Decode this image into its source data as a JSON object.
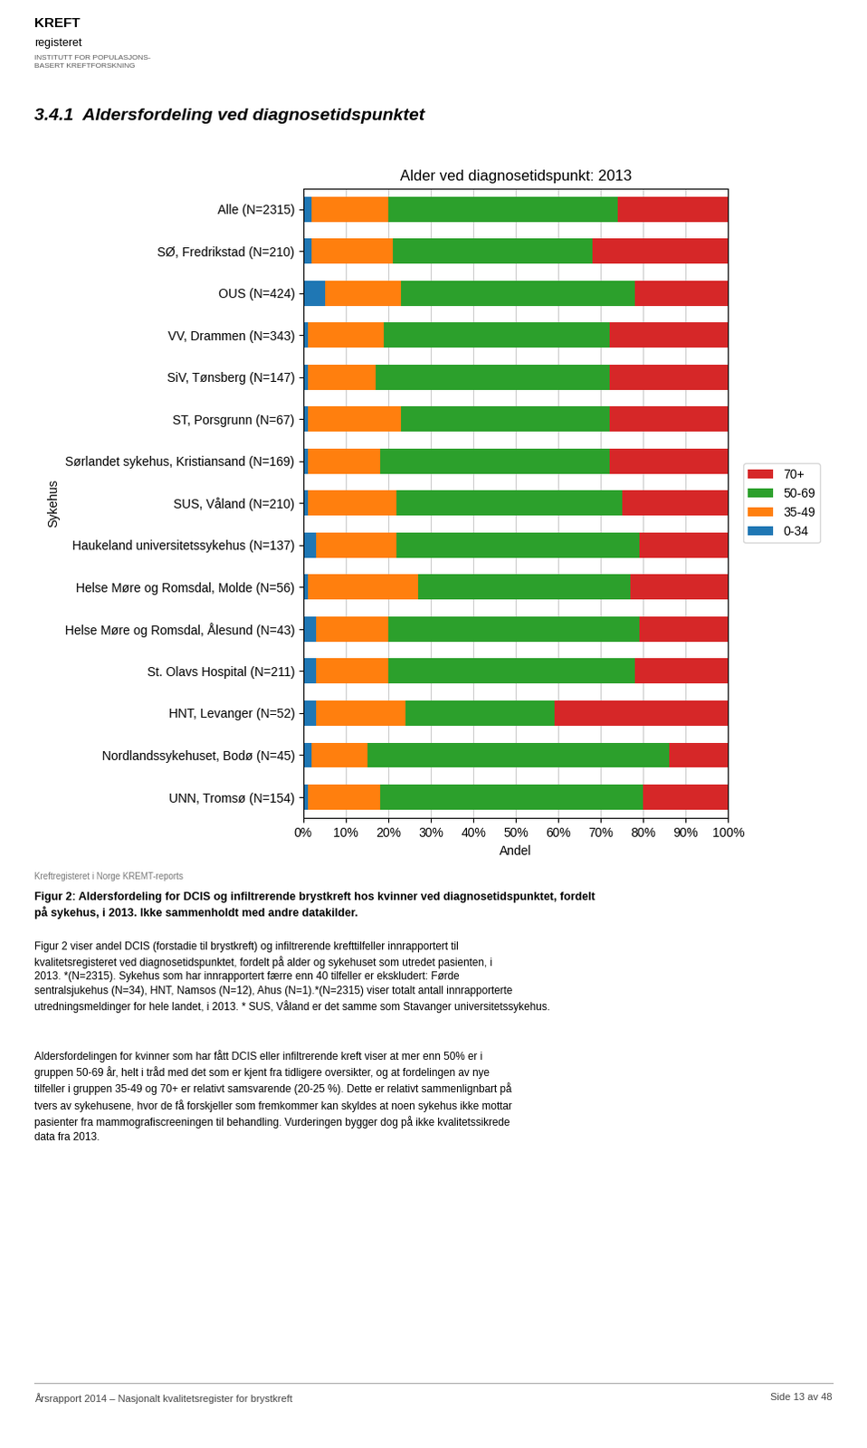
{
  "chart_data": {
    "type": "bar",
    "orientation": "horizontal",
    "stacked": true,
    "title": "Alder ved diagnosetidspunkt: 2013",
    "x_label": "Andel",
    "y_label": "Sykehus",
    "categories": [
      "Alle (N=2315)",
      "SØ, Fredrikstad (N=210)",
      "OUS (N=424)",
      "VV, Drammen (N=343)",
      "SiV, Tønsberg (N=147)",
      "ST, Porsgrunn (N=67)",
      "Sørlandet sykehus, Kristiansand (N=169)",
      "SUS, Våland (N=210)",
      "Haukeland universitetssykehus (N=137)",
      "Helse Møre og Romsdal, Molde (N=56)",
      "Helse Møre og Romsdal, Ålesund (N=43)",
      "St. Olavs Hospital (N=211)",
      "HNT, Levanger (N=52)",
      "Nordlandssykehuset, Bodø (N=45)",
      "UNN, Tromsø (N=154)"
    ],
    "series": [
      {
        "name": "0-34",
        "values": [
          2,
          2,
          5,
          1,
          1,
          1,
          1,
          1,
          3,
          1,
          3,
          3,
          3,
          2,
          1
        ]
      },
      {
        "name": "35-49",
        "values": [
          18,
          19,
          18,
          18,
          16,
          22,
          17,
          21,
          19,
          26,
          17,
          17,
          21,
          13,
          17
        ]
      },
      {
        "name": "50-69",
        "values": [
          54,
          47,
          55,
          53,
          55,
          49,
          54,
          53,
          57,
          50,
          59,
          58,
          35,
          71,
          62
        ]
      },
      {
        "name": "70+",
        "values": [
          26,
          32,
          22,
          28,
          28,
          28,
          28,
          25,
          21,
          23,
          21,
          22,
          41,
          14,
          20
        ]
      }
    ],
    "xlim": [
      0,
      100
    ],
    "xticks": [
      {
        "value": 0,
        "label": "0%"
      },
      {
        "value": 10,
        "label": "10%"
      },
      {
        "value": 20,
        "label": "20%"
      },
      {
        "value": 30,
        "label": "30%"
      },
      {
        "value": 40,
        "label": "40%"
      },
      {
        "value": 50,
        "label": "50%"
      },
      {
        "value": 60,
        "label": "60%"
      },
      {
        "value": 70,
        "label": "70%"
      },
      {
        "value": 80,
        "label": "80%"
      },
      {
        "value": 90,
        "label": "90%"
      },
      {
        "value": 100,
        "label": "100%"
      }
    ],
    "grid": true,
    "legend": "right",
    "annotations": [
      "KREFT",
      "registeret",
      "INSTITUTT FOR POPULASJONS-\nBASERT KREFTFORSKNING",
      "3.4.1  Aldersfordeling ved diagnosetidspunktet",
      "Kreftregisteret i Norge KREMT-reports",
      "Figur 2: Aldersfordeling for DCIS og infiltrerende brystkreft hos kvinner ved diagnosetidspunktet, fordelt\npå sykehus, i 2013. Ikke sammenholdt med andre datakilder.",
      "Figur 2 viser andel DCIS (forstadie til brystkreft) og infiltrerende krefttilfeller innrapportert til\nkvalitetsregisteret ved diagnosetidspunktet, fordelt på alder og sykehuset som utredet pasienten, i\n2013. *(N=2315). Sykehus som har innrapportert færre enn 40 tilfeller er ekskludert: Førde\nsentralsjukehus (N=34), HNT, Namsos (N=12), Ahus (N=1).*(N=2315) viser totalt antall innrapporterte\nutredningsmeldinger for hele landet, i 2013. * SUS, Våland er det samme som Stavanger universitetssykehus.",
      "Aldersfordelingen for kvinner som har fått DCIS eller infiltrerende kreft viser at mer enn 50% er i\ngruppen 50-69 år, helt i tråd med det som er kjent fra tidligere oversikter, og at fordelingen av nye\ntilfeller i gruppen 35-49 og 70+ er relativt samsvarende (20-25 %). Dette er relativt sammenlignbart på\ntvers av sykehusene, hvor de få forskjeller som fremkommer kan skyldes at noen sykehus ikke mottar\npasienter fra mammografiscreeningen til behandling. Vurderingen bygger dog på ikke kvalitetssikrede\ndata fra 2013.",
      "Årsrapport 2014 – Nasjonalt kvalitetsregister for brystkreft",
      "Side 13 av 48"
    ]
  }
}
